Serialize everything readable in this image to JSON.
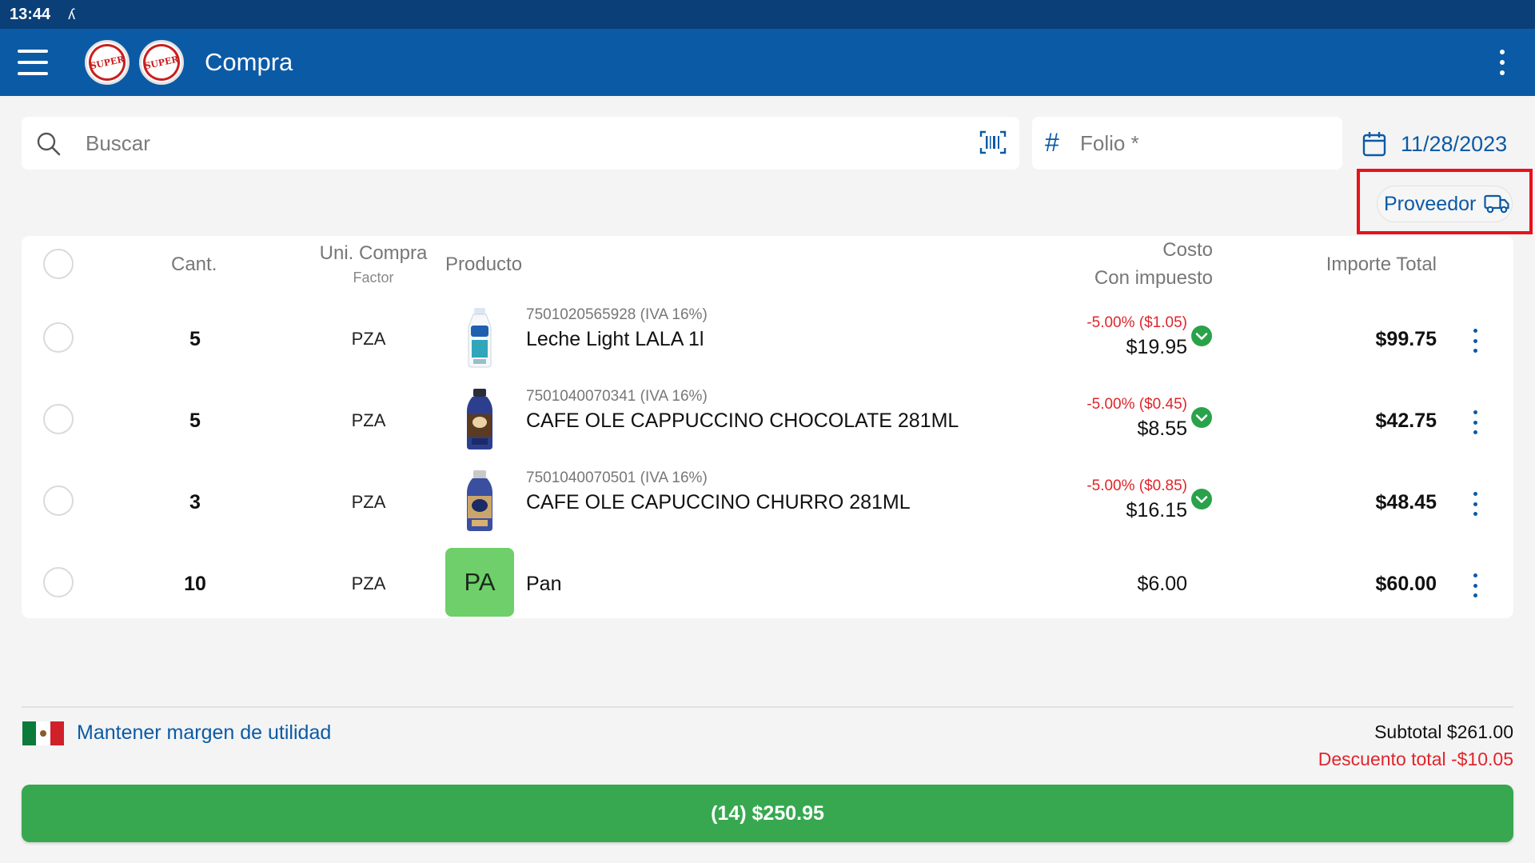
{
  "status_bar": {
    "time": "13:44",
    "activity_glyph": "ʎ"
  },
  "app_bar": {
    "title": "Compra",
    "logo_text": "SUPER"
  },
  "search": {
    "placeholder": "Buscar",
    "value": ""
  },
  "folio": {
    "symbol": "#",
    "placeholder": "Folio *",
    "value": ""
  },
  "date": "11/28/2023",
  "proveedor": {
    "label": "Proveedor"
  },
  "table": {
    "headers": {
      "qty": "Cant.",
      "unit": "Uni. Compra",
      "unit_sub": "Factor",
      "product": "Producto",
      "cost": "Costo",
      "cost_sub": "Con impuesto",
      "total": "Importe Total"
    },
    "rows": [
      {
        "qty": "5",
        "unit": "PZA",
        "code": "7501020565928 (IVA 16%)",
        "name": "Leche Light LALA 1l",
        "discount": "-5.00% ($1.05)",
        "cost": "$19.95",
        "total": "$99.75",
        "image": "milk-bottle-icon"
      },
      {
        "qty": "5",
        "unit": "PZA",
        "code": "7501040070341 (IVA 16%)",
        "name": "CAFE OLE CAPPUCCINO CHOCOLATE 281ML",
        "discount": "-5.00% ($0.45)",
        "cost": "$8.55",
        "total": "$42.75",
        "image": "coffee-bottle-icon"
      },
      {
        "qty": "3",
        "unit": "PZA",
        "code": "7501040070501 (IVA 16%)",
        "name": "CAFE OLE CAPUCCINO CHURRO 281ML",
        "discount": "-5.00% ($0.85)",
        "cost": "$16.15",
        "total": "$48.45",
        "image": "coffee-bottle-icon"
      },
      {
        "qty": "10",
        "unit": "PZA",
        "code": "",
        "name": "Pan",
        "avatar": "PA",
        "discount": "",
        "cost": "$6.00",
        "total": "$60.00"
      }
    ]
  },
  "footer": {
    "margin_link": "Mantener margen de utilidad",
    "subtotal": "Subtotal $261.00",
    "descuento": "Descuento total -$10.05",
    "pay_button": "(14) $250.95"
  },
  "colors": {
    "primary": "#0b5aa6",
    "status_bar": "#0a3f78",
    "pay_green": "#37a84f",
    "discount_red": "#e0252b",
    "highlight_red": "#e8121b",
    "check_green": "#2aa24a",
    "avatar_green": "#6fcf6a"
  }
}
